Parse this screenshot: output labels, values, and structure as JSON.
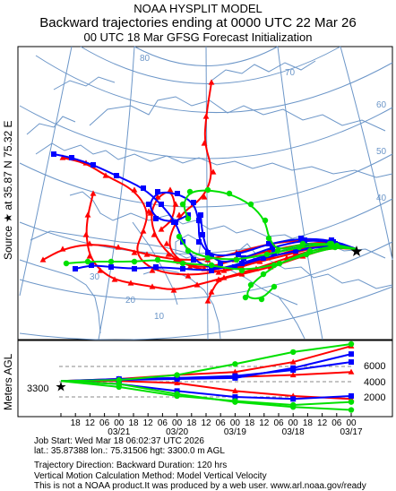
{
  "header": {
    "line1": "NOAA HYSPLIT MODEL",
    "line2": "Backward trajectories ending at 0000 UTC 22 Mar 26",
    "line3": "00 UTC 18 Mar    GFSG  Forecast Initialization"
  },
  "map": {
    "side_label": "Source ★ at   35.87 N   75.32 E",
    "source_marker": "star-icon",
    "graticule_labels": [
      "80",
      "70",
      "60",
      "50",
      "40",
      "30",
      "20",
      "10"
    ],
    "colors": {
      "red": "#ff0000",
      "blue": "#0000ff",
      "green": "#00e000",
      "map": "#6c96c8"
    }
  },
  "height_panel": {
    "ylabel": "Meters AGL",
    "start_height_label": "3300",
    "right_ticks": [
      "6000",
      "4000",
      "2000"
    ],
    "hour_ticks": [
      "18",
      "12",
      "06",
      "00",
      "18",
      "12",
      "06",
      "00",
      "18",
      "12",
      "06",
      "00",
      "18",
      "12",
      "06",
      "00",
      "18",
      "12",
      "06",
      "00"
    ],
    "date_ticks": [
      "03/21",
      "03/20",
      "03/19",
      "03/18",
      "03/17"
    ]
  },
  "chart_data": {
    "type": "line",
    "title": "Backward trajectories ending at 0000 UTC 22 Mar 26",
    "xlabel": "",
    "ylabel": "Meters AGL",
    "x": [
      "03/17 00",
      "03/18 00",
      "03/19 00",
      "03/20 00",
      "03/21 00",
      "03/22 00"
    ],
    "ylim": [
      0,
      7000
    ],
    "series": [
      {
        "color": "#ff0000",
        "values": [
          6800,
          5200,
          4200,
          3900,
          3500,
          3300
        ]
      },
      {
        "color": "#ff0000",
        "values": [
          4200,
          3900,
          3700,
          3600,
          3400,
          3300
        ]
      },
      {
        "color": "#ff0000",
        "values": [
          1500,
          1800,
          2300,
          3100,
          3300,
          3300
        ]
      },
      {
        "color": "#0000ff",
        "values": [
          6000,
          4600,
          3600,
          3500,
          3400,
          3300
        ]
      },
      {
        "color": "#0000ff",
        "values": [
          5200,
          4400,
          3800,
          3600,
          3500,
          3300
        ]
      },
      {
        "color": "#0000ff",
        "values": [
          1800,
          1500,
          1700,
          2300,
          3000,
          3300
        ]
      },
      {
        "color": "#00e000",
        "values": [
          7000,
          6200,
          5000,
          3900,
          3400,
          3300
        ]
      },
      {
        "color": "#00e000",
        "values": [
          1200,
          900,
          1300,
          1800,
          2700,
          3300
        ]
      },
      {
        "color": "#00e000",
        "values": [
          400,
          700,
          1200,
          2000,
          3000,
          3300
        ]
      }
    ]
  },
  "footer": {
    "line1": "Job Start: Wed Mar 18 06:02:37 UTC 2026",
    "line2": "lat.: 35.87388   lon.: 75.31506   hgt: 3300.0 m AGL",
    "line3": "Trajectory Direction: Backward       Duration: 120 hrs",
    "line4": "Vertical Motion Calculation Method: Model Vertical Velocity",
    "line5": "This is not a NOAA product.It was produced by a web user. www.arl.noaa.gov/ready"
  }
}
